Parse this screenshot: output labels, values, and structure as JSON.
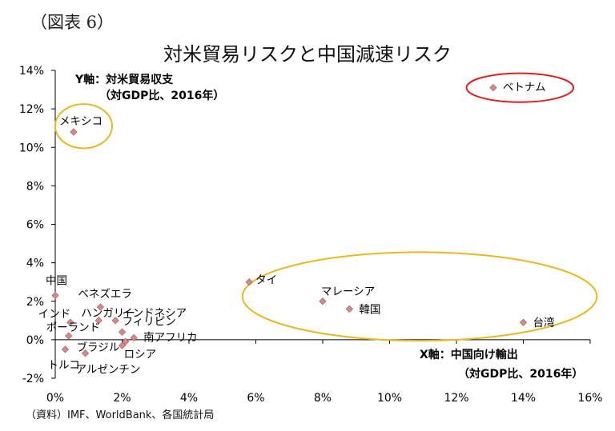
{
  "header": {
    "figure_label": "（図表 6）",
    "source": "（資料）IMF、WorldBank、各国統計局"
  },
  "chart_data": {
    "type": "scatter",
    "title": "対米貿易リスクと中国減速リスク",
    "y_axis_title": [
      "Y軸：対米貿易収支",
      "（対GDP比、2016年）"
    ],
    "x_axis_title": [
      "X軸：中国向け輸出",
      "（対GDP比、2016年）"
    ],
    "xlim": [
      0,
      16
    ],
    "ylim": [
      -2,
      14
    ],
    "x_ticks": [
      0,
      2,
      4,
      6,
      8,
      10,
      12,
      14,
      16
    ],
    "y_ticks": [
      -2,
      0,
      2,
      4,
      6,
      8,
      10,
      12,
      14
    ],
    "x_tick_labels": [
      "0%",
      "2%",
      "4%",
      "6%",
      "8%",
      "10%",
      "12%",
      "14%",
      "16%"
    ],
    "y_tick_labels": [
      "-2%",
      "0%",
      "2%",
      "4%",
      "6%",
      "8%",
      "10%",
      "12%",
      "14%"
    ],
    "marker_color": "#d48a8a",
    "points": [
      {
        "label": "ベトナム",
        "x": 13.1,
        "y": 13.1
      },
      {
        "label": "メキシコ",
        "x": 0.55,
        "y": 10.8
      },
      {
        "label": "タイ",
        "x": 5.8,
        "y": 3.0
      },
      {
        "label": "マレーシア",
        "x": 8.0,
        "y": 2.0
      },
      {
        "label": "韓国",
        "x": 8.8,
        "y": 1.6
      },
      {
        "label": "台湾",
        "x": 14.0,
        "y": 0.9
      },
      {
        "label": "中国",
        "x": 0.0,
        "y": 2.3
      },
      {
        "label": "ベネズエラ",
        "x": 1.35,
        "y": 1.7
      },
      {
        "label": "インド",
        "x": 0.45,
        "y": 0.9
      },
      {
        "label": "ハンガリー",
        "x": 1.3,
        "y": 1.0
      },
      {
        "label": "インドネシア",
        "x": 1.8,
        "y": 1.0
      },
      {
        "label": "ポーランド",
        "x": 0.4,
        "y": 0.2
      },
      {
        "label": "フィリピン",
        "x": 2.0,
        "y": 0.4
      },
      {
        "label": "南アフリカ",
        "x": 2.35,
        "y": 0.1
      },
      {
        "label": "ブラジル",
        "x": 2.0,
        "y": -0.3
      },
      {
        "label": "ロシア",
        "x": 2.1,
        "y": -0.1
      },
      {
        "label": "トルコ",
        "x": 0.3,
        "y": -0.5
      },
      {
        "label": "アルゼンチン",
        "x": 0.9,
        "y": -0.7
      }
    ],
    "highlight_colors": {
      "red": "#e02020",
      "gold": "#e8b820"
    }
  }
}
